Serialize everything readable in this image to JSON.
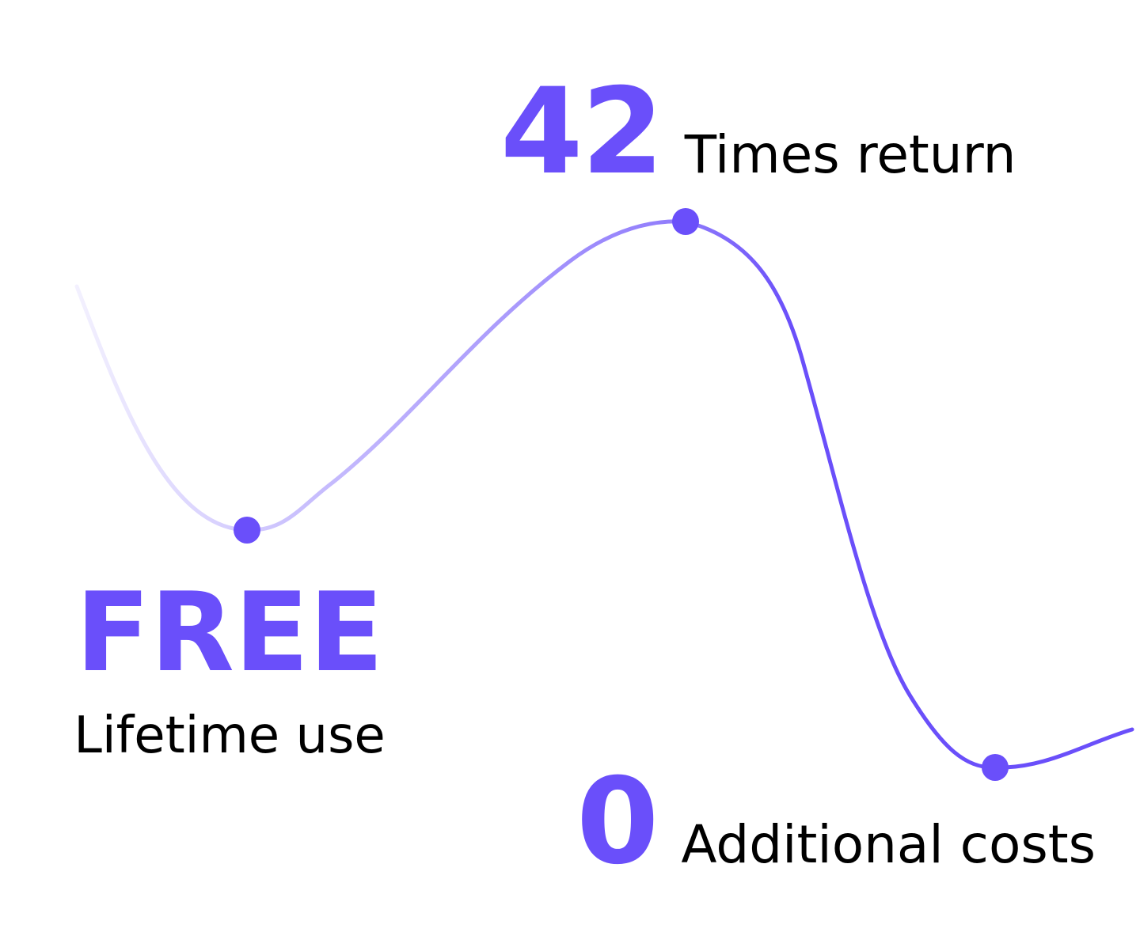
{
  "accent_color": "#6a4ffa",
  "text_color": "#000000",
  "stats": {
    "return": {
      "value": "42",
      "label": "Times return"
    },
    "free": {
      "value": "FREE",
      "label": "Lifetime use"
    },
    "costs": {
      "value": "0",
      "label": "Additional costs"
    }
  }
}
